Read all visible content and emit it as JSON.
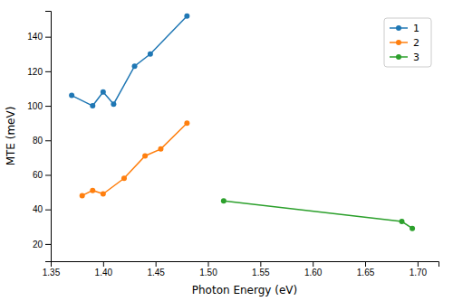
{
  "chart_data": {
    "type": "line",
    "xlabel": "Photon Energy (eV)",
    "ylabel": "MTE (meV)",
    "series": [
      {
        "name": "1",
        "color": "#1f77b4",
        "marker": "circle",
        "x": [
          1.37,
          1.39,
          1.4,
          1.41,
          1.43,
          1.445,
          1.48
        ],
        "values": [
          106,
          100,
          108,
          101,
          123,
          130,
          152
        ]
      },
      {
        "name": "2",
        "color": "#ff7f0e",
        "marker": "circle",
        "x": [
          1.38,
          1.39,
          1.4,
          1.42,
          1.44,
          1.455,
          1.48
        ],
        "values": [
          48,
          51,
          49,
          58,
          71,
          75,
          90
        ]
      },
      {
        "name": "3",
        "color": "#2ca02c",
        "marker": "circle",
        "x": [
          1.515,
          1.685,
          1.695
        ],
        "values": [
          45,
          33,
          29
        ]
      }
    ],
    "xlim": [
      1.35,
      1.72
    ],
    "ylim": [
      10,
      155
    ],
    "xticks": [
      1.35,
      {
        "value": 1.4,
        "label": "1.40"
      },
      1.45,
      {
        "value": 1.5,
        "label": "1.50"
      },
      1.55,
      {
        "value": 1.6,
        "label": "1.60"
      },
      1.65,
      {
        "value": 1.7,
        "label": "1.70"
      }
    ],
    "yticks": [
      20,
      40,
      60,
      80,
      100,
      120,
      140
    ],
    "grid": false,
    "legend": "upper right"
  }
}
